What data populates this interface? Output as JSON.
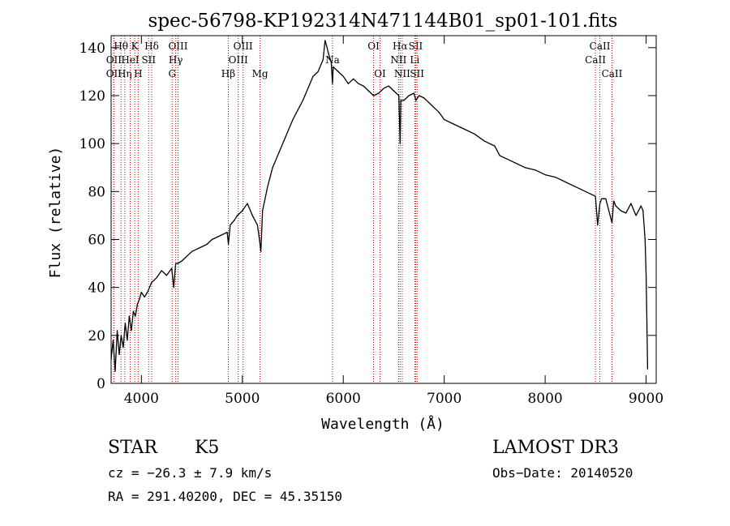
{
  "chart_data": {
    "type": "line",
    "title": "spec-56798-KP192314N471144B01_sp01-101.fits",
    "xlabel": "Wavelength (Å)",
    "ylabel": "Flux (relative)",
    "xlim": [
      3700,
      9100
    ],
    "ylim": [
      0,
      145
    ],
    "xticks": [
      4000,
      5000,
      6000,
      7000,
      8000,
      9000
    ],
    "yticks": [
      0,
      20,
      40,
      60,
      80,
      100,
      120,
      140
    ],
    "series": [
      {
        "name": "flux",
        "x": [
          3700,
          3720,
          3740,
          3760,
          3780,
          3800,
          3820,
          3840,
          3860,
          3880,
          3900,
          3920,
          3940,
          3960,
          3980,
          4000,
          4030,
          4060,
          4100,
          4150,
          4200,
          4250,
          4300,
          4320,
          4340,
          4360,
          4400,
          4450,
          4500,
          4550,
          4600,
          4650,
          4700,
          4750,
          4800,
          4850,
          4862,
          4880,
          4920,
          4950,
          5000,
          5050,
          5100,
          5150,
          5170,
          5183,
          5200,
          5250,
          5300,
          5400,
          5500,
          5600,
          5700,
          5750,
          5800,
          5820,
          5840,
          5850,
          5880,
          5893,
          5900,
          5950,
          6000,
          6050,
          6100,
          6150,
          6200,
          6250,
          6300,
          6350,
          6400,
          6450,
          6500,
          6550,
          6563,
          6570,
          6600,
          6650,
          6700,
          6720,
          6750,
          6800,
          6850,
          6900,
          6950,
          7000,
          7100,
          7200,
          7300,
          7400,
          7500,
          7550,
          7600,
          7650,
          7700,
          7800,
          7900,
          8000,
          8100,
          8200,
          8300,
          8400,
          8450,
          8498,
          8520,
          8542,
          8560,
          8600,
          8662,
          8680,
          8700,
          8750,
          8800,
          8850,
          8900,
          8950,
          8970,
          8990,
          9000,
          9010,
          9015
        ],
        "values": [
          10,
          18,
          5,
          22,
          12,
          20,
          15,
          25,
          18,
          28,
          22,
          30,
          28,
          33,
          35,
          38,
          36,
          38,
          42,
          44,
          47,
          45,
          48,
          40,
          50,
          50,
          51,
          53,
          55,
          56,
          57,
          58,
          60,
          61,
          62,
          63,
          58,
          66,
          68,
          70,
          72,
          75,
          70,
          66,
          60,
          55,
          72,
          82,
          90,
          100,
          110,
          118,
          128,
          130,
          135,
          143,
          140,
          138,
          134,
          125,
          132,
          130,
          128,
          125,
          127,
          125,
          124,
          122,
          120,
          121,
          123,
          124,
          122,
          120,
          100,
          118,
          118,
          120,
          121,
          118,
          120,
          119,
          117,
          115,
          113,
          110,
          108,
          106,
          104,
          101,
          99,
          95,
          94,
          93,
          92,
          90,
          89,
          87,
          86,
          84,
          82,
          80,
          79,
          78,
          66,
          75,
          77,
          77,
          67,
          76,
          74,
          72,
          71,
          75,
          70,
          74,
          72,
          60,
          45,
          20,
          6
        ]
      }
    ],
    "line_markers": [
      {
        "label": "Hθ",
        "x": 3798,
        "row": 0
      },
      {
        "label": "OII",
        "x": 3727,
        "row": 1
      },
      {
        "label": "OII",
        "x": 3727,
        "row": 2
      },
      {
        "label": "Hη",
        "x": 3835,
        "row": 2
      },
      {
        "label": "HeI",
        "x": 3889,
        "row": 1
      },
      {
        "label": "K",
        "x": 3934,
        "row": 0
      },
      {
        "label": "H",
        "x": 3968,
        "row": 2
      },
      {
        "label": "SII",
        "x": 4072,
        "row": 1
      },
      {
        "label": "Hδ",
        "x": 4102,
        "row": 0
      },
      {
        "label": "OIII",
        "x": 4363,
        "row": 0
      },
      {
        "label": "Hγ",
        "x": 4340,
        "row": 1
      },
      {
        "label": "G",
        "x": 4305,
        "row": 2
      },
      {
        "label": "Hβ",
        "x": 4861,
        "row": 2
      },
      {
        "label": "OIII",
        "x": 5007,
        "row": 0
      },
      {
        "label": "OIII",
        "x": 4959,
        "row": 1
      },
      {
        "label": "Mg",
        "x": 5175,
        "row": 2
      },
      {
        "label": "Na",
        "x": 5893,
        "row": 1
      },
      {
        "label": "OI",
        "x": 6300,
        "row": 0
      },
      {
        "label": "OI",
        "x": 6364,
        "row": 2
      },
      {
        "label": "Hα",
        "x": 6563,
        "row": 0
      },
      {
        "label": "NII",
        "x": 6548,
        "row": 1
      },
      {
        "label": "NII",
        "x": 6584,
        "row": 2
      },
      {
        "label": "SII",
        "x": 6717,
        "row": 0
      },
      {
        "label": "Li",
        "x": 6708,
        "row": 1
      },
      {
        "label": "SII",
        "x": 6731,
        "row": 2
      },
      {
        "label": "CaII",
        "x": 8498,
        "row": 1
      },
      {
        "label": "CaII",
        "x": 8542,
        "row": 0
      },
      {
        "label": "CaII",
        "x": 8662,
        "row": 2
      }
    ]
  },
  "info": {
    "object_class": "STAR",
    "subclass": "K5",
    "survey": "LAMOST DR3",
    "redshift": "cz = −26.3 ± 7.9 km/s",
    "obs_date": "Obs−Date: 20140520",
    "coords": "RA = 291.40200, DEC =  45.35150"
  }
}
